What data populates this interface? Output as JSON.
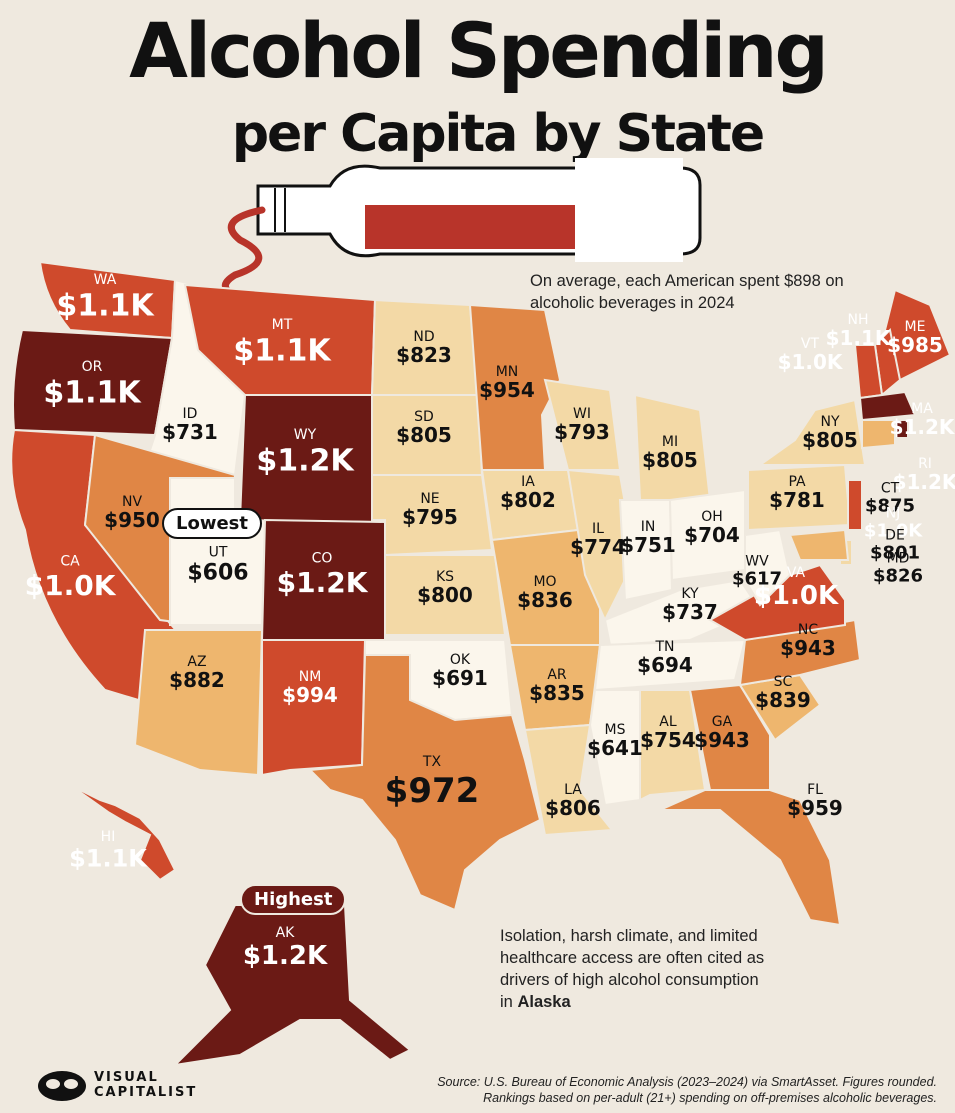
{
  "title": "Alcohol Spending",
  "subtitle": "per Capita by State",
  "avg_note": "On average, each American spent $898 on alcoholic beverages in 2024",
  "ak_note": "Isolation, harsh climate, and limited healthcare access are often cited as drivers of high alcohol consumption in",
  "ak_note_bold": "Alaska",
  "lowest_label": "Lowest",
  "highest_label": "Highest",
  "source_line1": "Source: U.S. Bureau of Economic Analysis (2023–2024) via SmartAsset. Figures rounded.",
  "source_line2": "Rankings based on per-adult (21+) spending on off-premises alcoholic beverages.",
  "logo_line1": "VISUAL",
  "logo_line2": "CAPITALIST",
  "colors": {
    "background": "#efe9df",
    "lightest": "#fbf6ec",
    "light": "#f3d9a6",
    "mid_light": "#eeb66e",
    "mid": "#e08645",
    "dark": "#cf4a2c",
    "darkest": "#6b1a15"
  },
  "states": [
    {
      "abbr": "WA",
      "value": "$1.1K",
      "shade": "dark"
    },
    {
      "abbr": "OR",
      "value": "$1.1K",
      "shade": "darkest"
    },
    {
      "abbr": "CA",
      "value": "$1.0K",
      "shade": "dark"
    },
    {
      "abbr": "ID",
      "value": "$731",
      "shade": "lightest"
    },
    {
      "abbr": "NV",
      "value": "$950",
      "shade": "mid"
    },
    {
      "abbr": "UT",
      "value": "$606",
      "shade": "lightest"
    },
    {
      "abbr": "AZ",
      "value": "$882",
      "shade": "mid_light"
    },
    {
      "abbr": "MT",
      "value": "$1.1K",
      "shade": "dark"
    },
    {
      "abbr": "WY",
      "value": "$1.2K",
      "shade": "darkest"
    },
    {
      "abbr": "CO",
      "value": "$1.2K",
      "shade": "darkest"
    },
    {
      "abbr": "NM",
      "value": "$994",
      "shade": "dark"
    },
    {
      "abbr": "ND",
      "value": "$823",
      "shade": "light"
    },
    {
      "abbr": "SD",
      "value": "$805",
      "shade": "light"
    },
    {
      "abbr": "NE",
      "value": "$795",
      "shade": "light"
    },
    {
      "abbr": "KS",
      "value": "$800",
      "shade": "light"
    },
    {
      "abbr": "OK",
      "value": "$691",
      "shade": "lightest"
    },
    {
      "abbr": "TX",
      "value": "$972",
      "shade": "mid"
    },
    {
      "abbr": "MN",
      "value": "$954",
      "shade": "mid"
    },
    {
      "abbr": "IA",
      "value": "$802",
      "shade": "light"
    },
    {
      "abbr": "MO",
      "value": "$836",
      "shade": "mid_light"
    },
    {
      "abbr": "AR",
      "value": "$835",
      "shade": "mid_light"
    },
    {
      "abbr": "LA",
      "value": "$806",
      "shade": "light"
    },
    {
      "abbr": "WI",
      "value": "$793",
      "shade": "light"
    },
    {
      "abbr": "IL",
      "value": "$774",
      "shade": "light"
    },
    {
      "abbr": "MI",
      "value": "$805",
      "shade": "light"
    },
    {
      "abbr": "IN",
      "value": "$751",
      "shade": "lightest"
    },
    {
      "abbr": "OH",
      "value": "$704",
      "shade": "lightest"
    },
    {
      "abbr": "KY",
      "value": "$737",
      "shade": "lightest"
    },
    {
      "abbr": "TN",
      "value": "$694",
      "shade": "lightest"
    },
    {
      "abbr": "MS",
      "value": "$641",
      "shade": "lightest"
    },
    {
      "abbr": "AL",
      "value": "$754",
      "shade": "light"
    },
    {
      "abbr": "GA",
      "value": "$943",
      "shade": "mid"
    },
    {
      "abbr": "FL",
      "value": "$959",
      "shade": "mid"
    },
    {
      "abbr": "SC",
      "value": "$839",
      "shade": "mid_light"
    },
    {
      "abbr": "NC",
      "value": "$943",
      "shade": "mid"
    },
    {
      "abbr": "VA",
      "value": "$1.0K",
      "shade": "dark"
    },
    {
      "abbr": "WV",
      "value": "$617",
      "shade": "lightest"
    },
    {
      "abbr": "PA",
      "value": "$781",
      "shade": "light"
    },
    {
      "abbr": "NY",
      "value": "$805",
      "shade": "light"
    },
    {
      "abbr": "ME",
      "value": "$985",
      "shade": "dark"
    },
    {
      "abbr": "NH",
      "value": "$1.1K",
      "shade": "dark"
    },
    {
      "abbr": "VT",
      "value": "$1.0K",
      "shade": "dark"
    },
    {
      "abbr": "MA",
      "value": "$1.2K",
      "shade": "darkest"
    },
    {
      "abbr": "RI",
      "value": "$1.2K",
      "shade": "darkest"
    },
    {
      "abbr": "CT",
      "value": "$875",
      "shade": "mid_light"
    },
    {
      "abbr": "NJ",
      "value": "$1.0K",
      "shade": "dark"
    },
    {
      "abbr": "DE",
      "value": "$801",
      "shade": "light"
    },
    {
      "abbr": "MD",
      "value": "$826",
      "shade": "mid_light"
    },
    {
      "abbr": "HI",
      "value": "$1.1K",
      "shade": "dark"
    },
    {
      "abbr": "AK",
      "value": "$1.2K",
      "shade": "darkest"
    }
  ]
}
